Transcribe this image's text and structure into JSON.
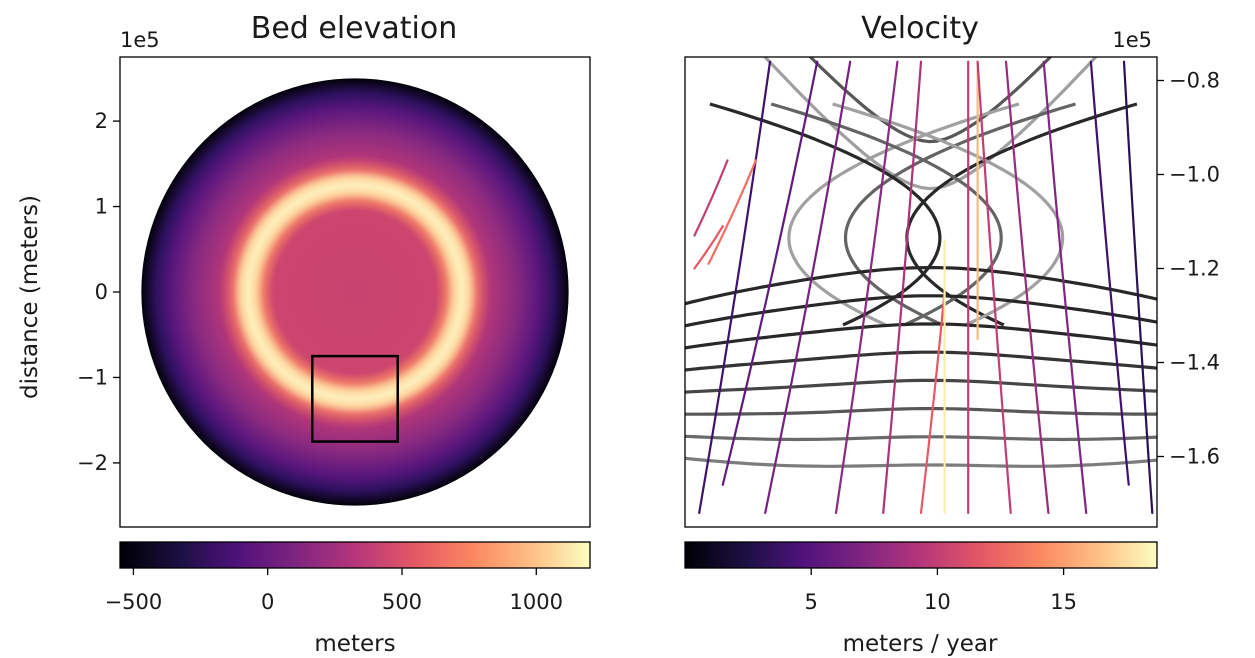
{
  "chart_data": [
    {
      "type": "heatmap",
      "title": "Bed elevation",
      "ylabel": "distance (meters)",
      "y_offset_label": "1e5",
      "yticks": [
        {
          "value": 2,
          "label": "2"
        },
        {
          "value": 1,
          "label": "1"
        },
        {
          "value": 0,
          "label": "0"
        },
        {
          "value": -1,
          "label": "−1"
        },
        {
          "value": -2,
          "label": "−2"
        }
      ],
      "ylim": [
        -2.75,
        2.75
      ],
      "xlim": [
        -2.75,
        2.75
      ],
      "domain": {
        "shape": "disc",
        "center": [
          0,
          0
        ],
        "radius": 2.5
      },
      "features": [
        {
          "name": "ridge ring",
          "shape": "ring",
          "center": [
            0,
            0
          ],
          "radius": 1.25,
          "elevation": 1150
        },
        {
          "name": "interior",
          "elevation": 500
        },
        {
          "name": "outer edge",
          "elevation": -500
        }
      ],
      "inset_box": {
        "x": [
          -0.5,
          0.5
        ],
        "y": [
          -1.75,
          -0.75
        ]
      },
      "colorbar": {
        "colormap": "magma",
        "label": "meters",
        "range": [
          -550,
          1200
        ],
        "ticks": [
          {
            "value": -500,
            "label": "−500"
          },
          {
            "value": 0,
            "label": "0"
          },
          {
            "value": 500,
            "label": "500"
          },
          {
            "value": 1000,
            "label": "1000"
          }
        ]
      }
    },
    {
      "type": "line",
      "title": "Velocity",
      "y_offset_label": "1e5",
      "yticks": [
        {
          "value": -0.8,
          "label": "−0.8"
        },
        {
          "value": -1.0,
          "label": "−1.0"
        },
        {
          "value": -1.2,
          "label": "−1.2"
        },
        {
          "value": -1.4,
          "label": "−1.4"
        },
        {
          "value": -1.6,
          "label": "−1.6"
        }
      ],
      "xlim": [
        -0.5,
        0.5
      ],
      "ylim": [
        -1.75,
        -0.75
      ],
      "contours": {
        "color": "#333333",
        "curves": [
          {
            "family": "upper",
            "t": 0.6,
            "y": -0.93
          },
          {
            "family": "upper",
            "t": 0.0,
            "y": -1.03
          },
          {
            "family": "left",
            "t": 0.0,
            "x": -0.28
          },
          {
            "family": "left",
            "t": 0.5,
            "x": -0.16
          },
          {
            "family": "left",
            "t": 1.0,
            "x": -0.03
          },
          {
            "family": "right",
            "t": 0.0,
            "x": 0.3
          },
          {
            "family": "right",
            "t": 0.5,
            "x": 0.17
          },
          {
            "family": "right",
            "t": 1.0,
            "x": 0.04
          },
          {
            "family": "lower",
            "t": 1.0,
            "y": -1.21
          },
          {
            "family": "lower",
            "t": 1.0,
            "y": -1.27
          },
          {
            "family": "lower",
            "t": 1.0,
            "y": -1.33
          },
          {
            "family": "lower",
            "t": 0.9,
            "y": -1.39
          },
          {
            "family": "lower",
            "t": 0.75,
            "y": -1.45
          },
          {
            "family": "lower",
            "t": 0.6,
            "y": -1.51
          },
          {
            "family": "lower",
            "t": 0.45,
            "y": -1.57
          },
          {
            "family": "lower",
            "t": 0.3,
            "y": -1.63
          }
        ]
      },
      "streamlines": [
        {
          "x0": -0.47,
          "y0": -1.72,
          "x1": -0.32,
          "y1": -0.76,
          "speed": 4.0
        },
        {
          "x0": -0.42,
          "y0": -1.66,
          "x1": -0.22,
          "y1": -0.76,
          "speed": 5.5
        },
        {
          "x0": -0.33,
          "y0": -1.72,
          "x1": -0.15,
          "y1": -0.76,
          "speed": 6.5
        },
        {
          "x0": -0.18,
          "y0": -1.72,
          "x1": -0.05,
          "y1": -0.76,
          "speed": 7.5
        },
        {
          "x0": -0.08,
          "y0": -1.72,
          "x1": 0.0,
          "y1": -0.76,
          "speed": 9.0
        },
        {
          "x0": 0.0,
          "y0": -1.72,
          "x1": 0.05,
          "y1": -1.25,
          "speed": 12.0
        },
        {
          "x0": 0.05,
          "y0": -1.72,
          "x1": 0.05,
          "y1": -1.14,
          "speed": 18.0
        },
        {
          "x0": 0.1,
          "y0": -1.72,
          "x1": 0.1,
          "y1": -0.76,
          "speed": 10.0
        },
        {
          "x0": 0.12,
          "y0": -1.35,
          "x1": 0.12,
          "y1": -0.76,
          "speed": 16.0
        },
        {
          "x0": 0.19,
          "y0": -1.72,
          "x1": 0.12,
          "y1": -0.76,
          "speed": 10.0
        },
        {
          "x0": 0.27,
          "y0": -1.72,
          "x1": 0.18,
          "y1": -0.76,
          "speed": 8.0
        },
        {
          "x0": 0.35,
          "y0": -1.72,
          "x1": 0.26,
          "y1": -0.76,
          "speed": 7.0
        },
        {
          "x0": 0.44,
          "y0": -1.66,
          "x1": 0.36,
          "y1": -0.76,
          "speed": 4.0
        },
        {
          "x0": 0.49,
          "y0": -1.72,
          "x1": 0.43,
          "y1": -0.76,
          "speed": 3.0
        },
        {
          "x0": -0.45,
          "y0": -1.19,
          "x1": -0.35,
          "y1": -0.97,
          "speed": 13.0
        },
        {
          "x0": -0.48,
          "y0": -1.13,
          "x1": -0.41,
          "y1": -0.97,
          "speed": 10.0
        },
        {
          "x0": -0.48,
          "y0": -1.2,
          "x1": -0.42,
          "y1": -1.11,
          "speed": 12.0
        }
      ],
      "colorbar": {
        "colormap": "magma",
        "label": "meters / year",
        "range": [
          0,
          18.7
        ],
        "ticks": [
          {
            "value": 5,
            "label": "5"
          },
          {
            "value": 10,
            "label": "10"
          },
          {
            "value": 15,
            "label": "15"
          }
        ]
      }
    }
  ]
}
